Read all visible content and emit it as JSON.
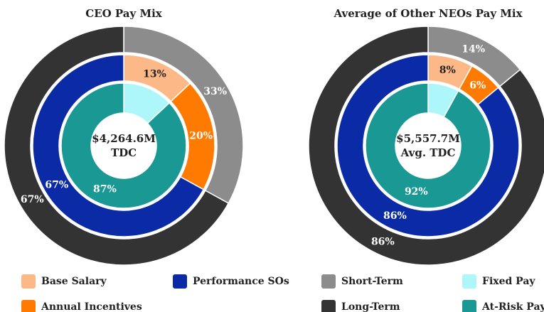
{
  "chart_data": [
    {
      "type": "donut",
      "title": "CEO Pay Mix",
      "center_label": [
        "$4,264.6M",
        "TDC"
      ],
      "rings": [
        {
          "categories": [
            "Short-Term",
            "Long-Term"
          ],
          "colors": [
            "#8c8c8c",
            "#333333"
          ],
          "values": [
            33,
            67
          ],
          "value_labels": [
            "33%",
            "67%"
          ]
        },
        {
          "categories": [
            "Base Salary",
            "Annual Incentives",
            "Performance SOs"
          ],
          "colors": [
            "#fcb886",
            "#ff7a00",
            "#0b2aa6"
          ],
          "values": [
            13,
            20,
            67
          ],
          "value_labels": [
            "13%",
            "20%",
            "67%"
          ]
        },
        {
          "categories": [
            "Fixed Pay",
            "At-Risk Pay"
          ],
          "colors": [
            "#adf7fb",
            "#1a9894"
          ],
          "values": [
            13,
            87
          ],
          "value_labels": [
            null,
            "87%"
          ]
        }
      ]
    },
    {
      "type": "donut",
      "title": "Average of Other NEOs Pay Mix",
      "center_label": [
        "$5,557.7M",
        "Avg. TDC"
      ],
      "rings": [
        {
          "categories": [
            "Short-Term",
            "Long-Term"
          ],
          "colors": [
            "#8c8c8c",
            "#333333"
          ],
          "values": [
            14,
            86
          ],
          "value_labels": [
            "14%",
            "86%"
          ]
        },
        {
          "categories": [
            "Base Salary",
            "Annual Incentives",
            "Performance SOs"
          ],
          "colors": [
            "#fcb886",
            "#ff7a00",
            "#0b2aa6"
          ],
          "values": [
            8,
            6,
            86
          ],
          "value_labels": [
            "8%",
            "6%",
            "86%"
          ]
        },
        {
          "categories": [
            "Fixed Pay",
            "At-Risk Pay"
          ],
          "colors": [
            "#adf7fb",
            "#1a9894"
          ],
          "values": [
            8,
            92
          ],
          "value_labels": [
            null,
            "92%"
          ]
        }
      ]
    }
  ]
}
